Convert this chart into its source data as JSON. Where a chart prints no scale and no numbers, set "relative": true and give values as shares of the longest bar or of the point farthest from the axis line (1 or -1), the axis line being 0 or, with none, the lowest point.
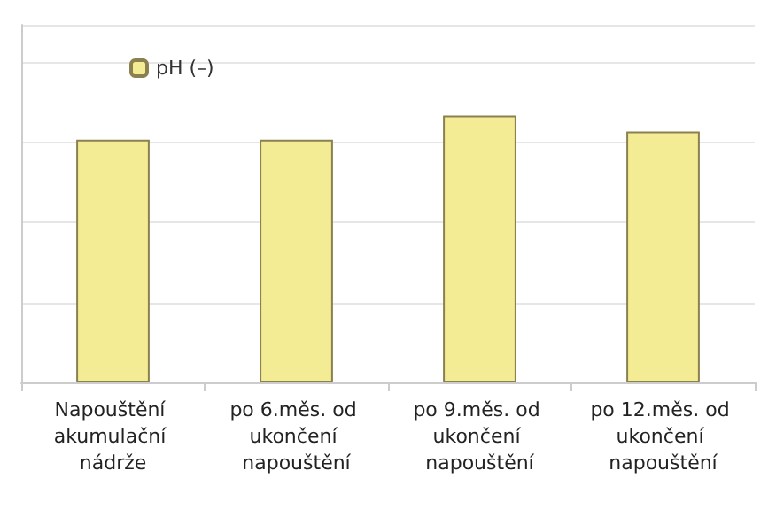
{
  "chart_data": {
    "type": "bar",
    "relative": true,
    "categories": [
      "Napouštění akumulační nádrže",
      "po 6.měs. od ukončení napouštění",
      "po 9.měs. od ukončení napouštění",
      "po 12.měs. od ukončení napouštění"
    ],
    "series": [
      {
        "name": "pH (–)",
        "color": "#f3ec94",
        "values": [
          0.91,
          0.91,
          1,
          0.94
        ]
      }
    ],
    "grid": true,
    "legend": "top left"
  }
}
